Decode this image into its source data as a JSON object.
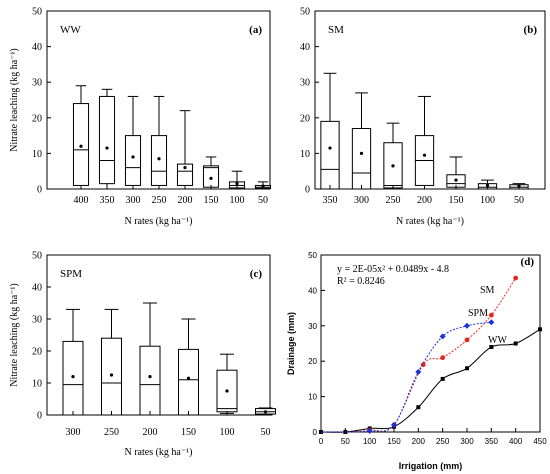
{
  "chart_data": [
    {
      "type": "box",
      "title": "WW",
      "panel_label": "(a)",
      "xlabel": "N rates (kg ha⁻¹)",
      "ylabel": "Nitrate leaching (kg ha⁻¹)",
      "ylim": [
        0,
        50
      ],
      "yticks": [
        0,
        10,
        20,
        30,
        40,
        50
      ],
      "categories": [
        "400",
        "350",
        "300",
        "250",
        "200",
        "150",
        "100",
        "50"
      ],
      "boxes": [
        {
          "min": 0,
          "q1": 1,
          "median": 11,
          "q3": 24,
          "max": 29,
          "mean": 12
        },
        {
          "min": 0,
          "q1": 1.5,
          "median": 8,
          "q3": 26,
          "max": 28,
          "mean": 11.5
        },
        {
          "min": 0,
          "q1": 1,
          "median": 6,
          "q3": 15,
          "max": 26,
          "mean": 9
        },
        {
          "min": 0,
          "q1": 1,
          "median": 5,
          "q3": 15,
          "max": 26,
          "mean": 8.5
        },
        {
          "min": 0,
          "q1": 1,
          "median": 5,
          "q3": 7,
          "max": 22,
          "mean": 6
        },
        {
          "min": 0,
          "q1": 0.5,
          "median": 6,
          "q3": 6.5,
          "max": 9,
          "mean": 3
        },
        {
          "min": 0,
          "q1": 0.3,
          "median": 1,
          "q3": 2,
          "max": 5,
          "mean": 1.5
        },
        {
          "min": 0,
          "q1": 0.2,
          "median": 0.5,
          "q3": 1,
          "max": 2,
          "mean": 0.8
        }
      ]
    },
    {
      "type": "box",
      "title": "SM",
      "panel_label": "(b)",
      "xlabel": "N rates (kg ha⁻¹)",
      "ylabel": "",
      "ylim": [
        0,
        50
      ],
      "yticks": [
        0,
        10,
        20,
        30,
        40,
        50
      ],
      "categories": [
        "350",
        "300",
        "250",
        "200",
        "150",
        "100",
        "50"
      ],
      "boxes": [
        {
          "min": 0,
          "q1": 0,
          "median": 5.5,
          "q3": 19,
          "max": 32.5,
          "mean": 11.5
        },
        {
          "min": 0,
          "q1": 0,
          "median": 4.5,
          "q3": 17,
          "max": 27,
          "mean": 10
        },
        {
          "min": 0,
          "q1": 0.3,
          "median": 1,
          "q3": 13,
          "max": 18.5,
          "mean": 6.5
        },
        {
          "min": 0,
          "q1": 1,
          "median": 8,
          "q3": 15,
          "max": 26,
          "mean": 9.5
        },
        {
          "min": 0,
          "q1": 0.5,
          "median": 1.5,
          "q3": 4,
          "max": 9,
          "mean": 2.5
        },
        {
          "min": 0,
          "q1": 0,
          "median": 0.5,
          "q3": 1.5,
          "max": 2.5,
          "mean": 1
        },
        {
          "min": 0,
          "q1": 0,
          "median": 0.5,
          "q3": 1.2,
          "max": 1.5,
          "mean": 0.8
        }
      ]
    },
    {
      "type": "box",
      "title": "SPM",
      "panel_label": "(c)",
      "xlabel": "N rates (kg ha⁻¹)",
      "ylabel": "Nitrate leaching (kg ha⁻¹)",
      "ylim": [
        0,
        50
      ],
      "yticks": [
        0,
        10,
        20,
        30,
        40,
        50
      ],
      "categories": [
        "300",
        "250",
        "200",
        "150",
        "100",
        "50"
      ],
      "boxes": [
        {
          "min": 0,
          "q1": 0,
          "median": 9.5,
          "q3": 23,
          "max": 33,
          "mean": 12
        },
        {
          "min": 0,
          "q1": 0,
          "median": 10,
          "q3": 24,
          "max": 33,
          "mean": 12.5
        },
        {
          "min": 0,
          "q1": 0,
          "median": 9.5,
          "q3": 21.5,
          "max": 35,
          "mean": 12
        },
        {
          "min": 0,
          "q1": 0,
          "median": 11,
          "q3": 20.5,
          "max": 30,
          "mean": 11.5
        },
        {
          "min": 0.5,
          "q1": 1,
          "median": 2,
          "q3": 14,
          "max": 19,
          "mean": 7.5
        },
        {
          "min": 0,
          "q1": 0.3,
          "median": 1,
          "q3": 2,
          "max": 2.2,
          "mean": 1
        }
      ]
    },
    {
      "type": "line",
      "title": "",
      "panel_label": "(d)",
      "xlabel": "Irrigation (mm)",
      "ylabel": "Drainage (mm)",
      "xlim": [
        0,
        450
      ],
      "ylim": [
        0,
        50
      ],
      "xticks": [
        0,
        50,
        100,
        150,
        200,
        250,
        300,
        350,
        400,
        450
      ],
      "yticks": [
        0,
        10,
        20,
        30,
        40,
        50
      ],
      "annotation": [
        "y = 2E-05x² + 0.0489x - 4.8",
        "R² = 0.8246"
      ],
      "series": [
        {
          "name": "WW",
          "color": "#000000",
          "marker": "square",
          "x": [
            0,
            50,
            100,
            150,
            200,
            250,
            300,
            350,
            400,
            450
          ],
          "y": [
            0,
            0,
            1,
            1.5,
            7,
            15,
            18,
            24,
            25,
            29
          ]
        },
        {
          "name": "SM",
          "color": "#e8261c",
          "marker": "circle",
          "x": [
            0,
            50,
            100,
            150,
            210,
            250,
            300,
            350,
            400
          ],
          "y": [
            0,
            0,
            0.5,
            2,
            19,
            21,
            26,
            33,
            43.5
          ]
        },
        {
          "name": "SPM",
          "color": "#1b32d8",
          "marker": "diamond",
          "x": [
            0,
            50,
            100,
            150,
            200,
            250,
            300,
            350
          ],
          "y": [
            0,
            0,
            0.3,
            2,
            17,
            27,
            30,
            31
          ]
        }
      ]
    }
  ]
}
